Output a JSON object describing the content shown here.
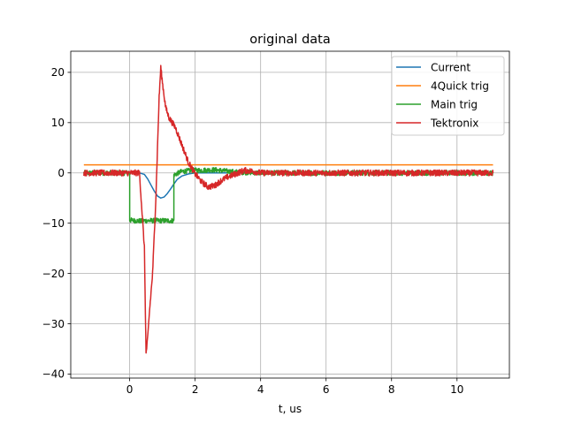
{
  "chart_data": {
    "type": "line",
    "title": "original data",
    "xlabel": "t, us",
    "ylabel": "",
    "xlim": [
      -1.8,
      11.6
    ],
    "ylim": [
      -40.8,
      24.2
    ],
    "grid": true,
    "legend_position": "top-right",
    "xticks": [
      0,
      2,
      4,
      6,
      8,
      10
    ],
    "xtick_labels": [
      "0",
      "2",
      "4",
      "6",
      "8",
      "10"
    ],
    "yticks": [
      -40,
      -30,
      -20,
      -10,
      0,
      10,
      20
    ],
    "ytick_labels": [
      "−40",
      "−30",
      "−20",
      "−10",
      "0",
      "10",
      "20"
    ],
    "series": [
      {
        "name": "Current",
        "color": "#1f77b4",
        "x": [
          -1.4,
          0.3,
          0.45,
          0.55,
          0.65,
          0.75,
          0.85,
          0.95,
          1.05,
          1.15,
          1.25,
          1.35,
          1.45,
          1.6,
          1.8,
          2.0,
          2.5,
          3.0,
          4.0,
          6.0,
          8.0,
          11.1
        ],
        "y": [
          0,
          0,
          -0.3,
          -1.2,
          -2.4,
          -3.6,
          -4.6,
          -5.0,
          -4.8,
          -4.1,
          -3.2,
          -2.2,
          -1.3,
          -0.6,
          -0.2,
          0,
          0,
          0,
          0,
          0,
          0,
          0
        ]
      },
      {
        "name": "4Quick trig",
        "color": "#ff7f0e",
        "x": [
          -1.4,
          1.7,
          1.7,
          11.1
        ],
        "y": [
          1.6,
          1.6,
          1.6,
          1.6
        ]
      },
      {
        "name": "Main trig",
        "color": "#2ca02c",
        "x": [
          -1.4,
          0.0,
          0.0,
          0.4,
          0.4,
          1.35,
          1.35,
          1.6,
          2.0,
          2.6,
          3.2,
          4.0,
          6.0,
          8.0,
          11.1
        ],
        "y": [
          0,
          0,
          -9.4,
          -9.6,
          -9.5,
          -9.5,
          -0.4,
          0.3,
          0.5,
          0.6,
          0.2,
          0,
          0,
          0,
          0
        ],
        "noise": 0.5
      },
      {
        "name": "Tektronix",
        "color": "#d62728",
        "x": [
          -1.4,
          0.0,
          0.3,
          0.45,
          0.5,
          0.55,
          0.6,
          0.7,
          0.8,
          0.9,
          0.95,
          1.0,
          1.1,
          1.2,
          1.4,
          1.6,
          1.8,
          2.0,
          2.2,
          2.4,
          2.6,
          2.8,
          3.0,
          3.2,
          3.5,
          3.8,
          4.0,
          6.0,
          8.0,
          11.1
        ],
        "y": [
          0,
          0,
          0,
          -15,
          -36,
          -33,
          -28,
          -20,
          -5,
          15,
          21,
          18,
          13,
          11,
          9,
          5.5,
          2.0,
          -0.2,
          -1.8,
          -2.8,
          -2.5,
          -1.5,
          -0.8,
          -0.3,
          0.5,
          0.3,
          0,
          0,
          0,
          0
        ],
        "noise": 0.6
      }
    ]
  }
}
